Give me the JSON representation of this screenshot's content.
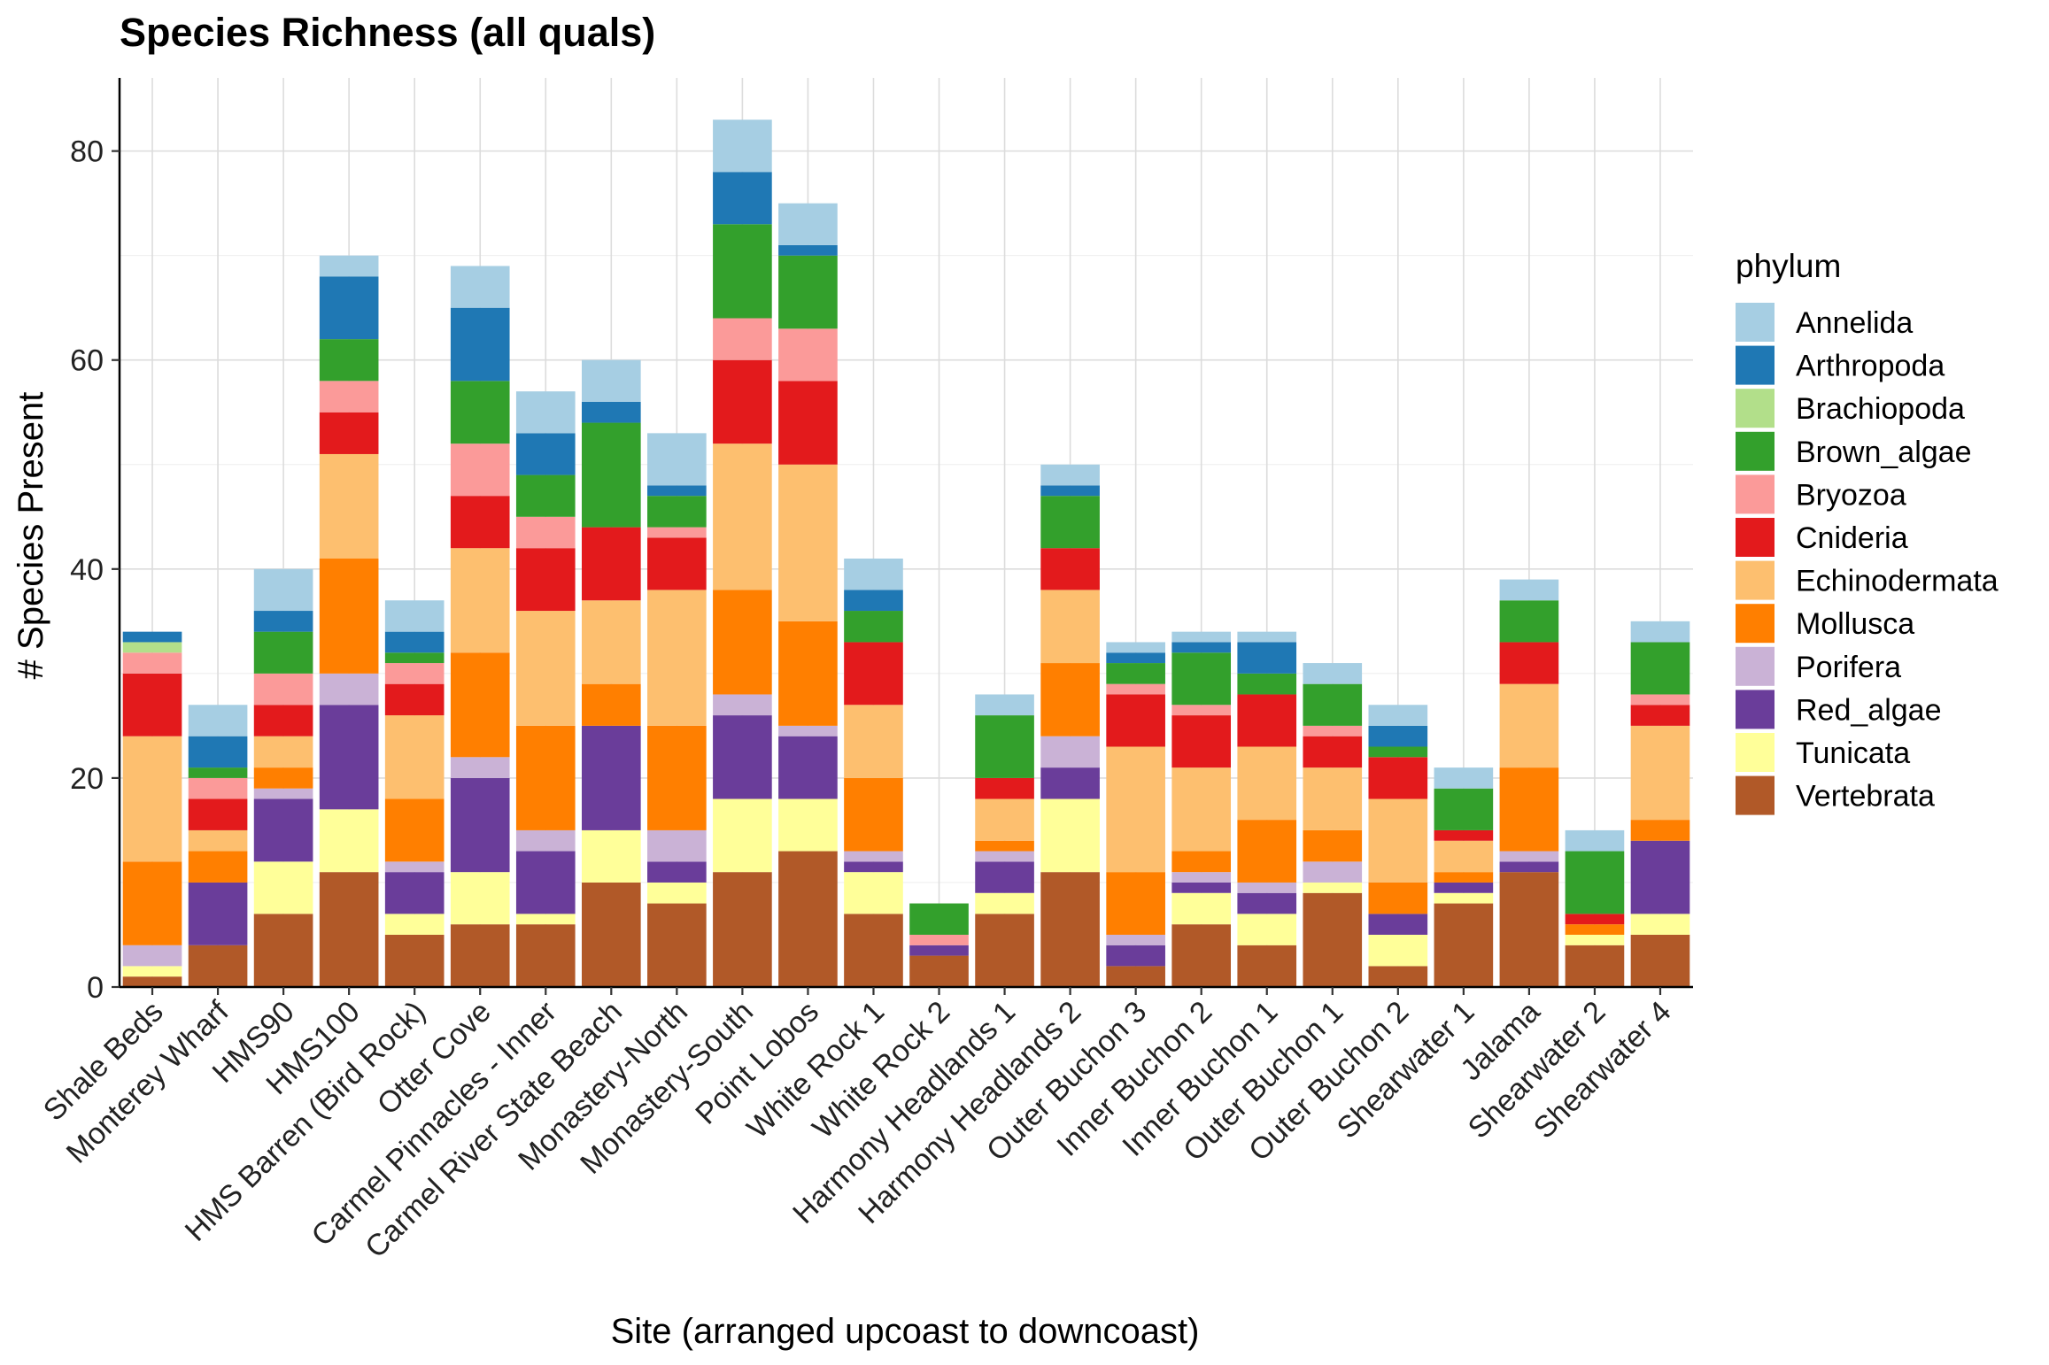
{
  "chart_data": {
    "type": "bar",
    "stacked": true,
    "title": "Species Richness (all quals)",
    "xlabel": "Site (arranged upcoast to downcoast)",
    "ylabel": "# Species Present",
    "ylim": [
      0,
      87
    ],
    "yticks": [
      0,
      20,
      40,
      60,
      80
    ],
    "grid": true,
    "legend": {
      "title": "phylum",
      "position": "right"
    },
    "categories": [
      "Shale Beds",
      "Monterey Wharf",
      "HMS90",
      "HMS100",
      "HMS Barren (Bird Rock)",
      "Otter Cove",
      "Carmel Pinnacles - Inner",
      "Carmel River State Beach",
      "Monastery-North",
      "Monastery-South",
      "Point Lobos",
      "White Rock 1",
      "White Rock 2",
      "Harmony Headlands 1",
      "Harmony Headlands 2",
      "Outer Buchon 3",
      "Inner Buchon 2",
      "Inner Buchon 1",
      "Outer Buchon 1",
      "Outer Buchon 2",
      "Shearwater 1",
      "Jalama",
      "Shearwater 2",
      "Shearwater 4"
    ],
    "series": [
      {
        "name": "Annelida",
        "color": "#a6cee3",
        "values": [
          0,
          3,
          4,
          2,
          3,
          4,
          4,
          4,
          5,
          5,
          4,
          3,
          0,
          2,
          2,
          1,
          1,
          1,
          2,
          2,
          2,
          2,
          2,
          2
        ]
      },
      {
        "name": "Arthropoda",
        "color": "#1f78b4",
        "values": [
          1,
          3,
          2,
          6,
          2,
          7,
          4,
          2,
          1,
          5,
          1,
          2,
          0,
          0,
          1,
          1,
          1,
          3,
          0,
          2,
          0,
          0,
          0,
          0
        ]
      },
      {
        "name": "Brachiopoda",
        "color": "#b2df8a",
        "values": [
          1,
          0,
          0,
          0,
          0,
          0,
          0,
          0,
          0,
          0,
          0,
          0,
          0,
          0,
          0,
          0,
          0,
          0,
          0,
          0,
          0,
          0,
          0,
          0
        ]
      },
      {
        "name": "Brown_algae",
        "color": "#33a02c",
        "values": [
          0,
          1,
          4,
          4,
          1,
          6,
          4,
          10,
          3,
          9,
          7,
          3,
          3,
          6,
          5,
          2,
          5,
          2,
          4,
          1,
          4,
          4,
          6,
          5
        ]
      },
      {
        "name": "Bryozoa",
        "color": "#fb9a99",
        "values": [
          2,
          2,
          3,
          3,
          2,
          5,
          3,
          0,
          1,
          4,
          5,
          0,
          1,
          0,
          0,
          1,
          1,
          0,
          1,
          0,
          0,
          0,
          0,
          1
        ]
      },
      {
        "name": "Cnideria",
        "color": "#e31a1c",
        "values": [
          6,
          3,
          3,
          4,
          3,
          5,
          6,
          7,
          5,
          8,
          8,
          6,
          0,
          2,
          4,
          5,
          5,
          5,
          3,
          4,
          1,
          4,
          1,
          2
        ]
      },
      {
        "name": "Echinodermata",
        "color": "#fdbf6f",
        "values": [
          12,
          2,
          3,
          10,
          8,
          10,
          11,
          8,
          13,
          14,
          15,
          7,
          0,
          4,
          7,
          12,
          8,
          7,
          6,
          8,
          3,
          8,
          0,
          9
        ]
      },
      {
        "name": "Mollusca",
        "color": "#ff7f00",
        "values": [
          8,
          3,
          2,
          11,
          6,
          10,
          10,
          4,
          10,
          10,
          10,
          7,
          0,
          1,
          7,
          6,
          2,
          6,
          3,
          3,
          1,
          8,
          1,
          2
        ]
      },
      {
        "name": "Porifera",
        "color": "#cab2d6",
        "values": [
          2,
          0,
          1,
          3,
          1,
          2,
          2,
          0,
          3,
          2,
          1,
          1,
          0,
          1,
          3,
          1,
          1,
          1,
          2,
          0,
          0,
          1,
          0,
          0
        ]
      },
      {
        "name": "Red_algae",
        "color": "#6a3d9a",
        "values": [
          0,
          6,
          6,
          10,
          4,
          9,
          6,
          10,
          2,
          8,
          6,
          1,
          1,
          3,
          3,
          2,
          1,
          2,
          0,
          2,
          1,
          1,
          0,
          7
        ]
      },
      {
        "name": "Tunicata",
        "color": "#ffff99",
        "values": [
          1,
          0,
          5,
          6,
          2,
          5,
          1,
          5,
          2,
          7,
          5,
          4,
          0,
          2,
          7,
          0,
          3,
          3,
          1,
          3,
          1,
          0,
          1,
          2
        ]
      },
      {
        "name": "Vertebrata",
        "color": "#b15928",
        "values": [
          1,
          4,
          7,
          11,
          5,
          6,
          6,
          10,
          8,
          11,
          13,
          7,
          3,
          7,
          11,
          2,
          6,
          4,
          9,
          2,
          8,
          11,
          4,
          5
        ]
      }
    ]
  }
}
